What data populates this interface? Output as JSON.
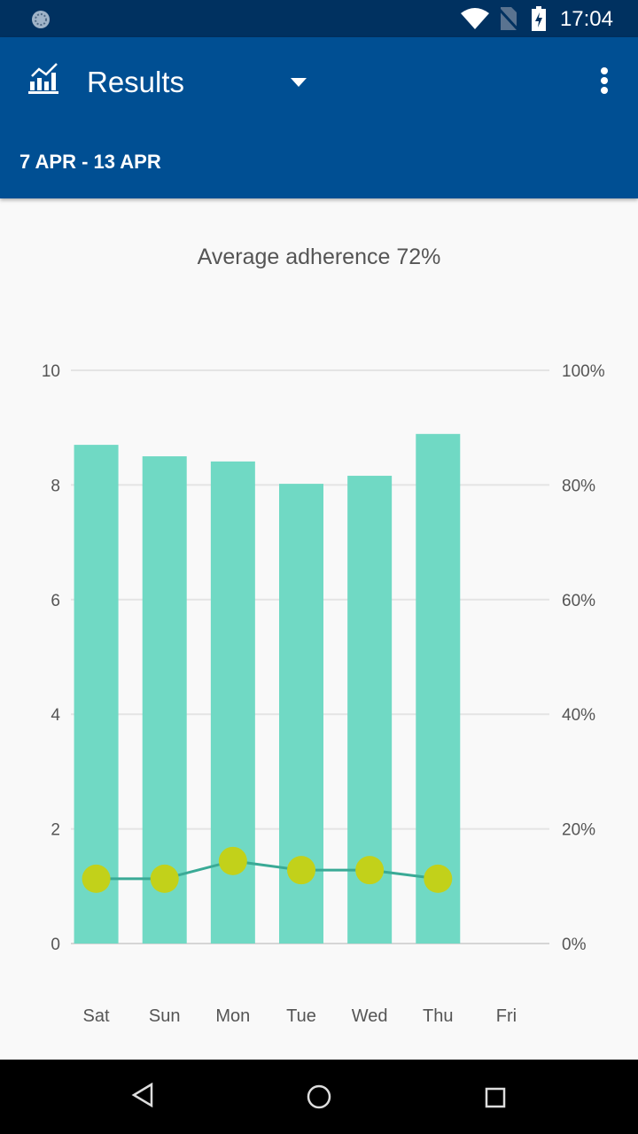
{
  "status_bar": {
    "time": "17:04"
  },
  "app_bar": {
    "title": "Results",
    "date_range": "7 APR - 13 APR"
  },
  "colors": {
    "bar": "#70d9c4",
    "line": "#3aaa96",
    "dot": "#c2d11a",
    "appbar": "#004f93"
  },
  "chart_data": {
    "type": "bar",
    "title": "Average adherence 72%",
    "categories": [
      "Sat",
      "Sun",
      "Mon",
      "Tue",
      "Wed",
      "Thu",
      "Fri"
    ],
    "series": [
      {
        "name": "bars",
        "type": "bar",
        "axis": "left",
        "values": [
          8.7,
          8.5,
          8.41,
          8.02,
          8.16,
          8.89,
          null
        ]
      },
      {
        "name": "line",
        "type": "line",
        "axis": "left",
        "values": [
          1.13,
          1.13,
          1.44,
          1.28,
          1.28,
          1.13,
          null
        ]
      }
    ],
    "left_axis": {
      "ylim": [
        0,
        10
      ],
      "ticks": [
        "0",
        "2",
        "4",
        "6",
        "8",
        "10"
      ]
    },
    "right_axis": {
      "ylim": [
        0,
        100
      ],
      "ticks": [
        "0%",
        "20%",
        "40%",
        "60%",
        "80%",
        "100%"
      ]
    },
    "grid": true
  }
}
